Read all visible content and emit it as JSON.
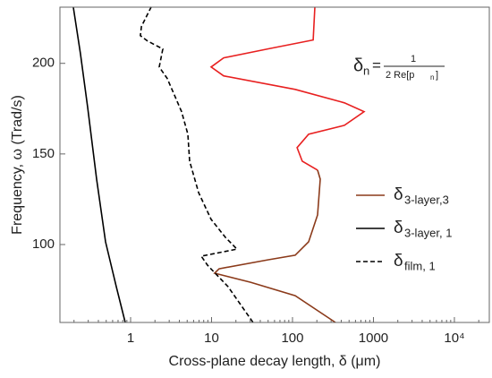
{
  "chart_data": {
    "type": "line",
    "x_label": "Cross-plane decay length, δ (μm)",
    "y_label": "Frequency, ω (Trad/s)",
    "xscale": "log",
    "xlim": [
      0.134,
      27000
    ],
    "ylim": [
      57,
      231
    ],
    "xticks": [
      1,
      10,
      100,
      1000,
      {
        "value": 10000,
        "label": "10⁴"
      }
    ],
    "yticks": [
      100,
      150,
      200
    ],
    "legend": "right",
    "annotation": {
      "lhs": "δ",
      "lhs_sub": "n",
      "eq": "=",
      "numerator": "1",
      "denominator": "2 Re[p",
      "denominator_sub": "n",
      "denominator_end": "]"
    },
    "series": [
      {
        "color": "#e82020",
        "dash": false,
        "x": [
          189,
          180,
          50.3,
          14.1,
          9.87,
          14.1,
          108,
          438,
          766,
          438,
          158,
          114,
          132,
          204
        ],
        "values": [
          231.2,
          212.9,
          208.0,
          203.0,
          198.0,
          193.1,
          185.6,
          178.2,
          173.3,
          165.8,
          160.9,
          153.5,
          146.0,
          141.1
        ]
      },
      {
        "name": "δ",
        "subscript": "3-layer,3",
        "color": "#8b3a1a",
        "dash": false,
        "x": [
          204,
          220,
          204,
          158,
          108,
          50.3,
          12.4,
          10.9,
          30.3,
          108,
          339
        ],
        "values": [
          141.1,
          136.1,
          116.3,
          101.5,
          94.1,
          91.6,
          86.6,
          84.2,
          79.2,
          71.8,
          57
        ]
      },
      {
        "name": "δ",
        "subscript": "3-layer, 1",
        "color": "#000000",
        "dash": false,
        "x": [
          0.196,
          0.24,
          0.295,
          0.38,
          0.491,
          0.665,
          0.859
        ],
        "values": [
          231.2,
          205.4,
          175.7,
          136.1,
          101.5,
          76.7,
          57
        ]
      },
      {
        "name": "δ",
        "subscript": "film, 1",
        "color": "#000000",
        "dash": true,
        "x": [
          1.8,
          1.36,
          1.32,
          1.62,
          2.5,
          2.26,
          2.84,
          4.27,
          5.1,
          5.36,
          6.92,
          9.87,
          14.8,
          20.6,
          7.46,
          8.92,
          16.0,
          32.6
        ],
        "values": [
          231.2,
          220.3,
          215.3,
          212.3,
          207.9,
          198.0,
          191.6,
          173.3,
          160.9,
          146.0,
          128.7,
          113.9,
          104.0,
          97.5,
          93.6,
          88.6,
          76.7,
          57
        ]
      }
    ]
  }
}
